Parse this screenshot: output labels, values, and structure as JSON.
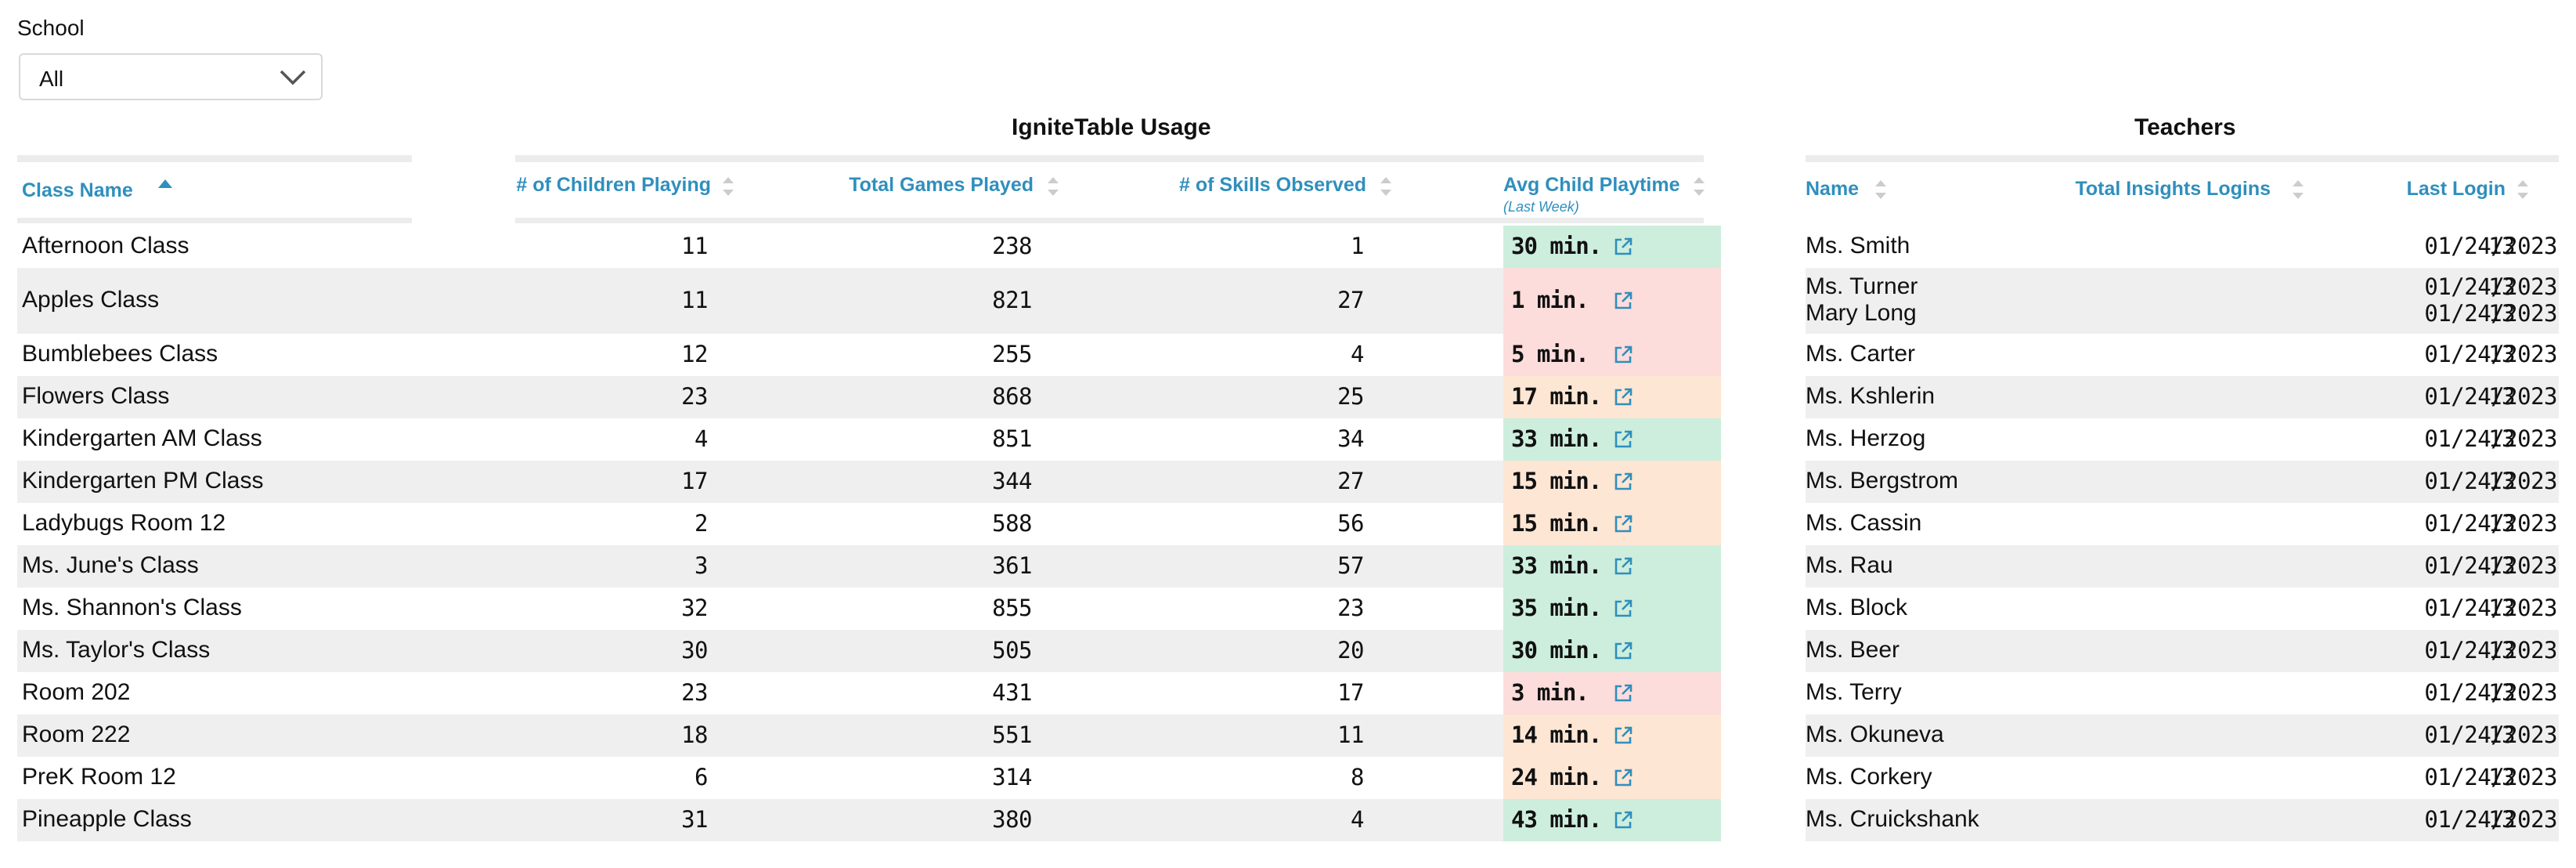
{
  "filter": {
    "label": "School",
    "value": "All",
    "icon": "chevron-down-icon"
  },
  "usage": {
    "title": "IgniteTable Usage",
    "columns": {
      "class_name": "Class Name",
      "children": "# of Children Playing",
      "games": "Total Games Played",
      "skills": "# of Skills Observed",
      "playtime": "Avg Child Playtime",
      "playtime_sub": "(Last Week)"
    },
    "status_colors": {
      "good": "#cdeedd",
      "medium": "#fde6d4",
      "low": "#fddcdc"
    },
    "rows": [
      {
        "name": "Afternoon Class",
        "children": "11",
        "games": "238",
        "skills": "1",
        "playtime": "30 min.",
        "status": "good"
      },
      {
        "name": "Apples Class",
        "children": "11",
        "games": "821",
        "skills": "27",
        "playtime": "1 min.",
        "status": "low"
      },
      {
        "name": "Bumblebees Class",
        "children": "12",
        "games": "255",
        "skills": "4",
        "playtime": "5 min.",
        "status": "low"
      },
      {
        "name": "Flowers Class",
        "children": "23",
        "games": "868",
        "skills": "25",
        "playtime": "17 min.",
        "status": "medium"
      },
      {
        "name": "Kindergarten AM Class",
        "children": "4",
        "games": "851",
        "skills": "34",
        "playtime": "33 min.",
        "status": "good"
      },
      {
        "name": "Kindergarten PM Class",
        "children": "17",
        "games": "344",
        "skills": "27",
        "playtime": "15 min.",
        "status": "medium"
      },
      {
        "name": "Ladybugs Room 12",
        "children": "2",
        "games": "588",
        "skills": "56",
        "playtime": "15 min.",
        "status": "medium"
      },
      {
        "name": "Ms. June's Class",
        "children": "3",
        "games": "361",
        "skills": "57",
        "playtime": "33 min.",
        "status": "good"
      },
      {
        "name": "Ms. Shannon's Class",
        "children": "32",
        "games": "855",
        "skills": "23",
        "playtime": "35 min.",
        "status": "good"
      },
      {
        "name": "Ms. Taylor's Class",
        "children": "30",
        "games": "505",
        "skills": "20",
        "playtime": "30 min.",
        "status": "good"
      },
      {
        "name": "Room 202",
        "children": "23",
        "games": "431",
        "skills": "17",
        "playtime": "3 min.",
        "status": "low"
      },
      {
        "name": "Room 222",
        "children": "18",
        "games": "551",
        "skills": "11",
        "playtime": "14 min.",
        "status": "medium"
      },
      {
        "name": "PreK Room 12",
        "children": "6",
        "games": "314",
        "skills": "8",
        "playtime": "24 min.",
        "status": "medium"
      },
      {
        "name": "Pineapple Class",
        "children": "31",
        "games": "380",
        "skills": "4",
        "playtime": "43 min.",
        "status": "good"
      }
    ]
  },
  "teachers": {
    "title": "Teachers",
    "columns": {
      "name": "Name",
      "logins": "Total Insights Logins",
      "last_login": "Last Login"
    },
    "rows": [
      [
        {
          "name": "Ms. Smith",
          "logins": "13",
          "last_login": "01/24/2023"
        }
      ],
      [
        {
          "name": "Ms. Turner",
          "logins": "13",
          "last_login": "01/24/2023"
        },
        {
          "name": "Mary Long",
          "logins": "13",
          "last_login": "01/24/2023"
        }
      ],
      [
        {
          "name": "Ms. Carter",
          "logins": "13",
          "last_login": "01/24/2023"
        }
      ],
      [
        {
          "name": "Ms. Kshlerin",
          "logins": "13",
          "last_login": "01/24/2023"
        }
      ],
      [
        {
          "name": "Ms. Herzog",
          "logins": "13",
          "last_login": "01/24/2023"
        }
      ],
      [
        {
          "name": "Ms. Bergstrom",
          "logins": "13",
          "last_login": "01/24/2023"
        }
      ],
      [
        {
          "name": "Ms. Cassin",
          "logins": "13",
          "last_login": "01/24/2023"
        }
      ],
      [
        {
          "name": "Ms. Rau",
          "logins": "13",
          "last_login": "01/24/2023"
        }
      ],
      [
        {
          "name": "Ms. Block",
          "logins": "13",
          "last_login": "01/24/2023"
        }
      ],
      [
        {
          "name": "Ms. Beer",
          "logins": "13",
          "last_login": "01/24/2023"
        }
      ],
      [
        {
          "name": "Ms. Terry",
          "logins": "13",
          "last_login": "01/24/2023"
        }
      ],
      [
        {
          "name": "Ms. Okuneva",
          "logins": "13",
          "last_login": "01/24/2023"
        }
      ],
      [
        {
          "name": "Ms. Corkery",
          "logins": "13",
          "last_login": "01/24/2023"
        }
      ],
      [
        {
          "name": "Ms. Cruickshank",
          "logins": "13",
          "last_login": "01/24/2023"
        }
      ]
    ]
  },
  "icons": {
    "sort": "sort-arrows-icon",
    "sort_asc": "sort-ascending-icon",
    "link": "external-link-icon"
  }
}
